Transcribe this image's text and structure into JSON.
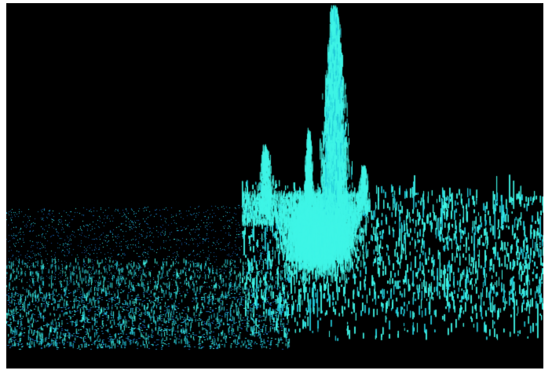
{
  "scene": {
    "description_hidden": "",
    "colors": {
      "background": "#000000",
      "frame": "#ffffff",
      "particle_bright": "#3ff5e6",
      "particle_mid": "#22c8d8",
      "particle_dim": "#1a7fb0",
      "particle_deep": "#1458a8"
    },
    "style": "3d-particle-point-cloud"
  }
}
